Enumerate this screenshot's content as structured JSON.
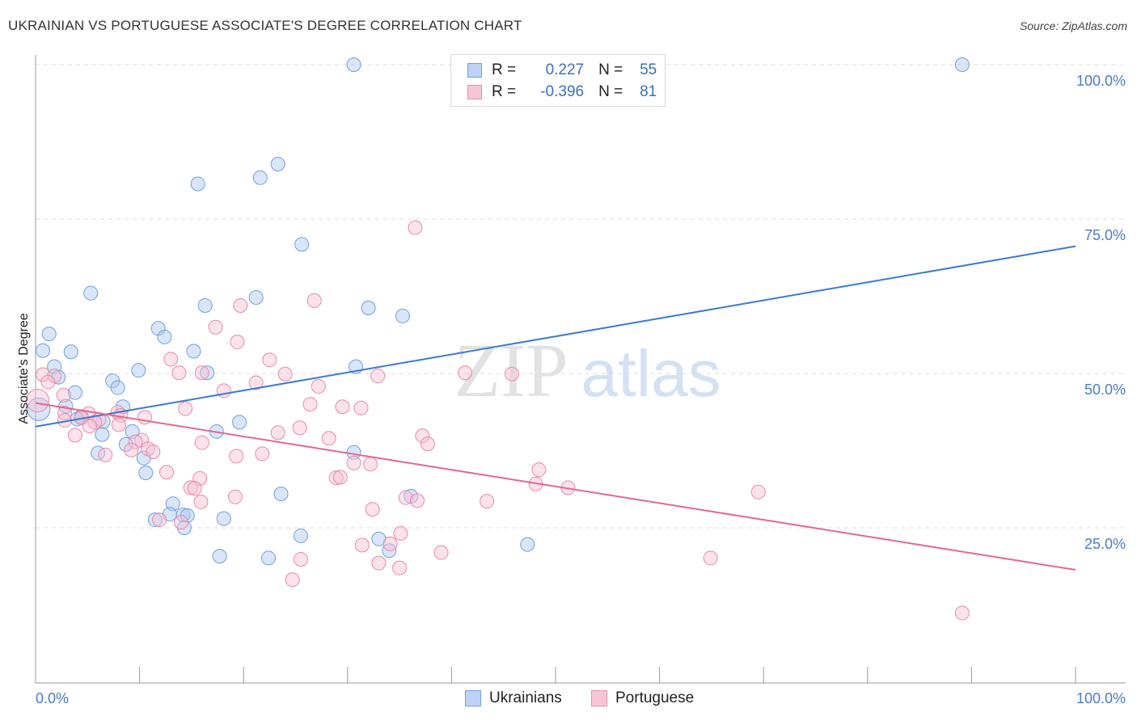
{
  "title": "UKRAINIAN VS PORTUGUESE ASSOCIATE'S DEGREE CORRELATION CHART",
  "source": "Source: ZipAtlas.com",
  "watermark": {
    "zip": "ZIP",
    "atlas": "atlas"
  },
  "legend": {
    "r_label": "R =",
    "n_label": "N =",
    "rows": [
      {
        "name": "Ukrainians",
        "r": "0.227",
        "n": "55",
        "color": "#6f9fe0",
        "fill": "#bcd3f5"
      },
      {
        "name": "Portuguese",
        "r": "-0.396",
        "n": "81",
        "color": "#e88aaa",
        "fill": "#f7c6d6"
      }
    ]
  },
  "chart_data": {
    "type": "scatter",
    "title": "UKRAINIAN VS PORTUGUESE ASSOCIATE'S DEGREE CORRELATION CHART",
    "xlabel": "",
    "ylabel": "Associate's Degree",
    "xlim": [
      0,
      100
    ],
    "ylim": [
      0,
      105
    ],
    "x_tick_labels": [
      "0.0%",
      "100.0%"
    ],
    "y_ticks": [
      25,
      50,
      75,
      100
    ],
    "y_tick_labels": [
      "25.0%",
      "50.0%",
      "75.0%",
      "100.0%"
    ],
    "grid": true,
    "legend_position": "top-center",
    "series": [
      {
        "name": "Ukrainians",
        "color": "#3b78d4",
        "trend": {
          "x": [
            0,
            100
          ],
          "y": [
            41.4,
            70.6
          ]
        },
        "points": [
          [
            30.6,
            100
          ],
          [
            89.1,
            100
          ],
          [
            23.3,
            83.9
          ],
          [
            21.6,
            81.7
          ],
          [
            15.6,
            80.7
          ],
          [
            25.6,
            70.9
          ],
          [
            5.3,
            63.0
          ],
          [
            21.2,
            62.3
          ],
          [
            16.3,
            61.0
          ],
          [
            32.0,
            60.6
          ],
          [
            35.3,
            59.3
          ],
          [
            11.8,
            57.3
          ],
          [
            1.3,
            56.4
          ],
          [
            12.4,
            55.9
          ],
          [
            0.7,
            53.7
          ],
          [
            3.4,
            53.5
          ],
          [
            15.2,
            53.6
          ],
          [
            30.8,
            51.1
          ],
          [
            1.8,
            51.1
          ],
          [
            9.9,
            50.5
          ],
          [
            16.5,
            50.1
          ],
          [
            2.2,
            49.4
          ],
          [
            7.4,
            48.8
          ],
          [
            7.9,
            47.7
          ],
          [
            3.8,
            46.9
          ],
          [
            2.9,
            44.7
          ],
          [
            8.4,
            44.6
          ],
          [
            0.3,
            44.2
          ],
          [
            4.4,
            43.0
          ],
          [
            4.0,
            42.6
          ],
          [
            6.5,
            42.2
          ],
          [
            19.6,
            42.1
          ],
          [
            17.4,
            40.6
          ],
          [
            9.3,
            40.6
          ],
          [
            6.4,
            40.1
          ],
          [
            8.7,
            38.5
          ],
          [
            6.0,
            37.1
          ],
          [
            30.6,
            37.2
          ],
          [
            10.4,
            36.3
          ],
          [
            10.6,
            33.9
          ],
          [
            23.6,
            30.5
          ],
          [
            36.1,
            30.1
          ],
          [
            13.2,
            28.9
          ],
          [
            12.9,
            27.2
          ],
          [
            14.2,
            27.1
          ],
          [
            14.6,
            27.0
          ],
          [
            11.5,
            26.3
          ],
          [
            18.1,
            26.5
          ],
          [
            14.3,
            25.0
          ],
          [
            25.5,
            23.7
          ],
          [
            33.0,
            23.2
          ],
          [
            47.3,
            22.3
          ],
          [
            34.0,
            21.3
          ],
          [
            17.7,
            20.4
          ],
          [
            22.4,
            20.1
          ]
        ]
      },
      {
        "name": "Portuguese",
        "color": "#e3678f",
        "trend": {
          "x": [
            0,
            100
          ],
          "y": [
            45.2,
            18.2
          ]
        },
        "points": [
          [
            36.5,
            73.6
          ],
          [
            26.8,
            61.8
          ],
          [
            19.7,
            61.0
          ],
          [
            17.3,
            57.5
          ],
          [
            19.4,
            55.1
          ],
          [
            13.0,
            52.3
          ],
          [
            22.5,
            52.2
          ],
          [
            0.7,
            49.8
          ],
          [
            1.8,
            49.6
          ],
          [
            13.8,
            50.1
          ],
          [
            16.0,
            50.1
          ],
          [
            24.0,
            49.9
          ],
          [
            32.9,
            49.6
          ],
          [
            41.3,
            50.1
          ],
          [
            45.8,
            49.9
          ],
          [
            1.2,
            48.6
          ],
          [
            21.2,
            48.5
          ],
          [
            27.2,
            47.9
          ],
          [
            18.1,
            47.2
          ],
          [
            2.7,
            46.5
          ],
          [
            0.2,
            45.6
          ],
          [
            26.4,
            45.0
          ],
          [
            29.5,
            44.6
          ],
          [
            31.3,
            44.4
          ],
          [
            14.4,
            44.3
          ],
          [
            7.9,
            43.7
          ],
          [
            2.8,
            43.6
          ],
          [
            5.1,
            43.5
          ],
          [
            8.2,
            43.2
          ],
          [
            10.5,
            42.9
          ],
          [
            4.4,
            42.8
          ],
          [
            2.8,
            42.4
          ],
          [
            6.1,
            42.5
          ],
          [
            5.7,
            42.1
          ],
          [
            8.0,
            41.7
          ],
          [
            5.2,
            41.5
          ],
          [
            25.4,
            41.2
          ],
          [
            23.3,
            40.4
          ],
          [
            3.8,
            40.0
          ],
          [
            28.2,
            39.5
          ],
          [
            37.2,
            39.9
          ],
          [
            10.2,
            39.2
          ],
          [
            9.6,
            38.9
          ],
          [
            16.0,
            38.8
          ],
          [
            37.7,
            38.6
          ],
          [
            10.8,
            37.8
          ],
          [
            9.2,
            37.6
          ],
          [
            11.3,
            37.3
          ],
          [
            6.7,
            36.8
          ],
          [
            21.8,
            37.0
          ],
          [
            19.3,
            36.6
          ],
          [
            30.6,
            35.5
          ],
          [
            32.2,
            35.3
          ],
          [
            12.6,
            34.0
          ],
          [
            48.4,
            34.4
          ],
          [
            15.8,
            33.0
          ],
          [
            28.9,
            33.1
          ],
          [
            29.3,
            33.2
          ],
          [
            48.1,
            32.1
          ],
          [
            14.9,
            31.5
          ],
          [
            51.2,
            31.5
          ],
          [
            15.3,
            31.4
          ],
          [
            69.5,
            30.8
          ],
          [
            19.2,
            30.0
          ],
          [
            35.6,
            29.9
          ],
          [
            36.7,
            29.4
          ],
          [
            43.4,
            29.3
          ],
          [
            15.9,
            29.2
          ],
          [
            32.4,
            28.0
          ],
          [
            11.9,
            26.3
          ],
          [
            35.1,
            24.1
          ],
          [
            31.4,
            22.2
          ],
          [
            34.1,
            22.4
          ],
          [
            39.0,
            21.0
          ],
          [
            64.9,
            20.1
          ],
          [
            25.5,
            19.9
          ],
          [
            33.0,
            19.3
          ],
          [
            35.0,
            18.5
          ],
          [
            24.7,
            16.6
          ],
          [
            89.1,
            11.2
          ],
          [
            14.0,
            25.9
          ]
        ]
      }
    ]
  },
  "bottom_legend": [
    "Ukrainians",
    "Portuguese"
  ]
}
